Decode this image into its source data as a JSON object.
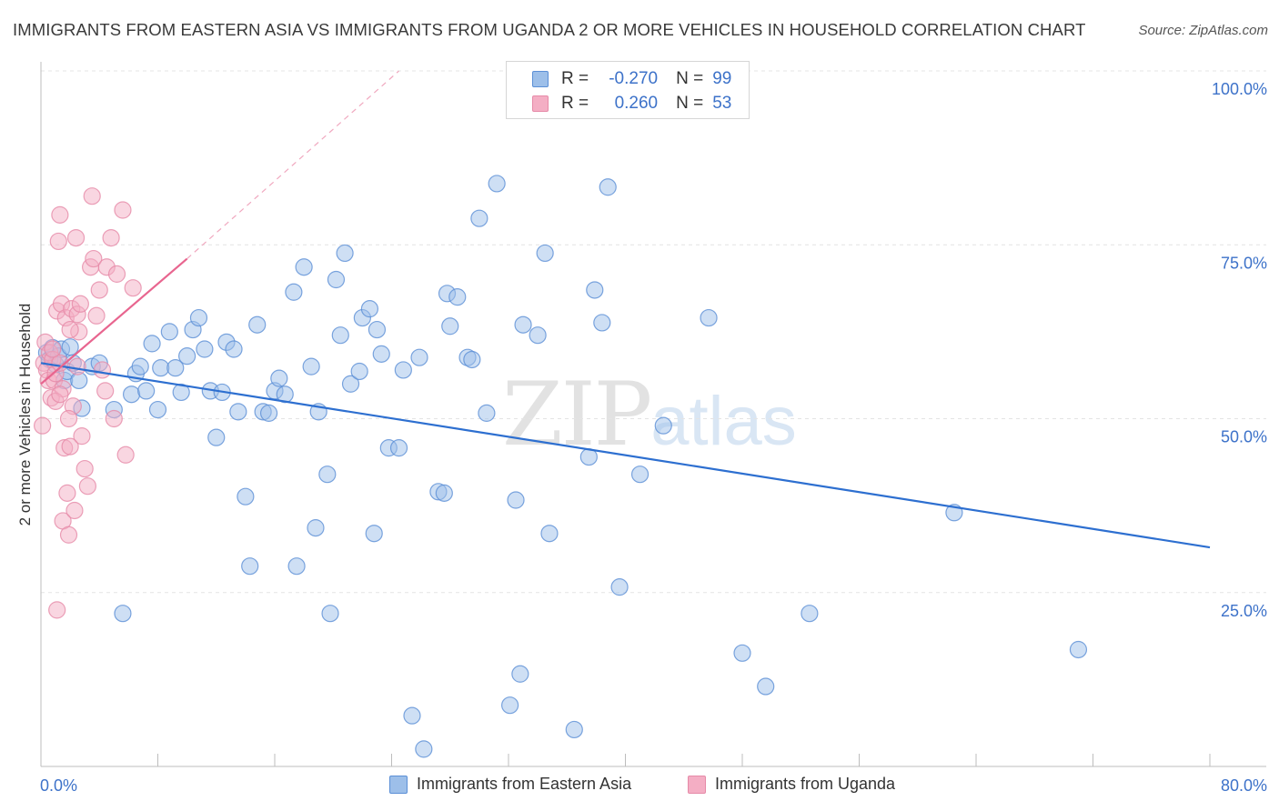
{
  "title": "IMMIGRANTS FROM EASTERN ASIA VS IMMIGRANTS FROM UGANDA 2 OR MORE VEHICLES IN HOUSEHOLD CORRELATION CHART",
  "source": "Source: ZipAtlas.com",
  "watermark": {
    "zip": "ZIP",
    "atlas": "atlas"
  },
  "legend": {
    "rows": [
      {
        "r_label": "R =",
        "r_value": "-0.270",
        "n_label": "N =",
        "n_value": "99",
        "color": "#9dbfe9"
      },
      {
        "r_label": "R =",
        "r_value": "0.260",
        "n_label": "N =",
        "n_value": "53",
        "color": "#f4aec4"
      }
    ]
  },
  "bottom_legend": [
    {
      "label": "Immigrants from Eastern Asia",
      "color": "#9dbfe9"
    },
    {
      "label": "Immigrants from Uganda",
      "color": "#f4aec4"
    }
  ],
  "chart_data": {
    "type": "scatter",
    "title": "IMMIGRANTS FROM EASTERN ASIA VS IMMIGRANTS FROM UGANDA 2 OR MORE VEHICLES IN HOUSEHOLD CORRELATION CHART",
    "xlabel": "",
    "ylabel": "2 or more Vehicles in Household",
    "xlim": [
      0,
      80
    ],
    "ylim": [
      0,
      100
    ],
    "x_tick_labels": [
      "0.0%",
      "80.0%"
    ],
    "y_tick_labels": [
      "25.0%",
      "50.0%",
      "75.0%",
      "100.0%"
    ],
    "y_ticks": [
      25,
      50,
      75,
      100
    ],
    "grid": true,
    "legend_position": "top-center",
    "series": [
      {
        "name": "Immigrants from Eastern Asia",
        "color": "#9dbfe9",
        "stroke": "#5b8fd6",
        "points": [
          [
            0.4,
            59.5
          ],
          [
            0.6,
            58.5
          ],
          [
            0.8,
            60.2
          ],
          [
            1.0,
            57.8
          ],
          [
            1.2,
            59.0
          ],
          [
            1.4,
            60.0
          ],
          [
            1.6,
            55.5
          ],
          [
            1.8,
            56.8
          ],
          [
            2.0,
            60.3
          ],
          [
            2.2,
            58.0
          ],
          [
            2.6,
            55.5
          ],
          [
            2.8,
            51.5
          ],
          [
            3.5,
            57.5
          ],
          [
            4.0,
            58.0
          ],
          [
            5.0,
            51.3
          ],
          [
            5.6,
            22.0
          ],
          [
            6.2,
            53.5
          ],
          [
            6.5,
            56.5
          ],
          [
            6.8,
            57.5
          ],
          [
            7.2,
            54.0
          ],
          [
            7.6,
            60.8
          ],
          [
            8.0,
            51.3
          ],
          [
            8.2,
            57.3
          ],
          [
            8.8,
            62.5
          ],
          [
            9.2,
            57.3
          ],
          [
            9.6,
            53.8
          ],
          [
            10.0,
            59.0
          ],
          [
            10.4,
            62.8
          ],
          [
            10.8,
            64.5
          ],
          [
            11.2,
            60.0
          ],
          [
            11.6,
            54.0
          ],
          [
            12.0,
            47.3
          ],
          [
            12.4,
            53.8
          ],
          [
            12.7,
            61.0
          ],
          [
            13.2,
            60.0
          ],
          [
            13.5,
            51.0
          ],
          [
            14.0,
            38.8
          ],
          [
            14.3,
            28.8
          ],
          [
            14.8,
            63.5
          ],
          [
            15.2,
            51.0
          ],
          [
            15.6,
            50.8
          ],
          [
            16.0,
            54.0
          ],
          [
            16.3,
            55.8
          ],
          [
            16.7,
            53.5
          ],
          [
            17.3,
            68.2
          ],
          [
            17.5,
            28.8
          ],
          [
            18.0,
            71.8
          ],
          [
            18.5,
            57.5
          ],
          [
            18.8,
            34.3
          ],
          [
            19.0,
            51.0
          ],
          [
            19.6,
            42.0
          ],
          [
            19.8,
            22.0
          ],
          [
            20.2,
            70.0
          ],
          [
            20.5,
            62.0
          ],
          [
            20.8,
            73.8
          ],
          [
            21.2,
            55.0
          ],
          [
            21.8,
            56.8
          ],
          [
            22.0,
            64.5
          ],
          [
            22.5,
            65.8
          ],
          [
            22.8,
            33.5
          ],
          [
            23.0,
            62.8
          ],
          [
            23.3,
            59.3
          ],
          [
            23.8,
            45.8
          ],
          [
            24.5,
            45.8
          ],
          [
            24.8,
            57.0
          ],
          [
            25.4,
            7.3
          ],
          [
            25.9,
            58.8
          ],
          [
            26.2,
            2.5
          ],
          [
            27.2,
            39.5
          ],
          [
            27.6,
            39.3
          ],
          [
            27.8,
            68.0
          ],
          [
            28.0,
            63.3
          ],
          [
            28.5,
            67.5
          ],
          [
            29.2,
            58.8
          ],
          [
            29.5,
            58.5
          ],
          [
            30.0,
            78.8
          ],
          [
            30.5,
            50.8
          ],
          [
            31.2,
            83.8
          ],
          [
            32.1,
            8.8
          ],
          [
            32.5,
            38.3
          ],
          [
            32.8,
            13.3
          ],
          [
            33.0,
            63.5
          ],
          [
            34.0,
            62.0
          ],
          [
            34.5,
            73.8
          ],
          [
            34.8,
            33.5
          ],
          [
            36.5,
            5.3
          ],
          [
            37.5,
            44.5
          ],
          [
            37.9,
            68.5
          ],
          [
            38.4,
            63.8
          ],
          [
            38.8,
            83.3
          ],
          [
            39.6,
            25.8
          ],
          [
            41.0,
            42.0
          ],
          [
            42.6,
            49.0
          ],
          [
            45.7,
            64.5
          ],
          [
            48.0,
            16.3
          ],
          [
            49.6,
            11.5
          ],
          [
            52.6,
            22.0
          ],
          [
            62.5,
            36.5
          ],
          [
            71.0,
            16.8
          ]
        ],
        "trend": [
          [
            0.0,
            58.0
          ],
          [
            80.0,
            31.5
          ]
        ]
      },
      {
        "name": "Immigrants from Uganda",
        "color": "#f4aec4",
        "stroke": "#e68aa8",
        "points": [
          [
            0.1,
            49.0
          ],
          [
            0.2,
            58.0
          ],
          [
            0.3,
            61.0
          ],
          [
            0.4,
            57.0
          ],
          [
            0.5,
            55.5
          ],
          [
            0.6,
            59.5
          ],
          [
            0.7,
            53.0
          ],
          [
            0.8,
            58.5
          ],
          [
            0.9,
            55.5
          ],
          [
            1.0,
            56.5
          ],
          [
            1.1,
            65.5
          ],
          [
            1.1,
            22.5
          ],
          [
            1.2,
            75.5
          ],
          [
            1.3,
            58.0
          ],
          [
            1.3,
            79.3
          ],
          [
            1.4,
            66.5
          ],
          [
            1.5,
            35.3
          ],
          [
            1.6,
            45.8
          ],
          [
            1.7,
            64.5
          ],
          [
            1.8,
            39.3
          ],
          [
            1.9,
            33.3
          ],
          [
            2.0,
            46.0
          ],
          [
            2.1,
            65.8
          ],
          [
            2.2,
            51.8
          ],
          [
            2.3,
            36.8
          ],
          [
            2.4,
            76.0
          ],
          [
            2.5,
            65.0
          ],
          [
            2.6,
            62.5
          ],
          [
            2.8,
            47.5
          ],
          [
            3.0,
            42.8
          ],
          [
            3.2,
            40.3
          ],
          [
            3.4,
            71.8
          ],
          [
            3.6,
            73.0
          ],
          [
            3.8,
            64.8
          ],
          [
            4.0,
            68.5
          ],
          [
            4.2,
            57.0
          ],
          [
            4.5,
            71.8
          ],
          [
            4.8,
            76.0
          ],
          [
            5.2,
            70.8
          ],
          [
            5.8,
            44.8
          ],
          [
            5.6,
            80.0
          ],
          [
            6.3,
            68.8
          ],
          [
            0.8,
            60.0
          ],
          [
            1.5,
            54.3
          ],
          [
            2.0,
            62.8
          ],
          [
            2.7,
            66.5
          ],
          [
            1.0,
            52.5
          ],
          [
            1.3,
            53.5
          ],
          [
            2.5,
            57.5
          ],
          [
            3.5,
            82.0
          ],
          [
            4.4,
            54.0
          ],
          [
            5.0,
            50.0
          ],
          [
            1.9,
            50.0
          ]
        ],
        "trend": [
          [
            0.0,
            55.0
          ],
          [
            10.0,
            73.0
          ]
        ],
        "trend_dashed": [
          [
            10.0,
            73.0
          ],
          [
            24.5,
            100.0
          ]
        ]
      }
    ]
  }
}
